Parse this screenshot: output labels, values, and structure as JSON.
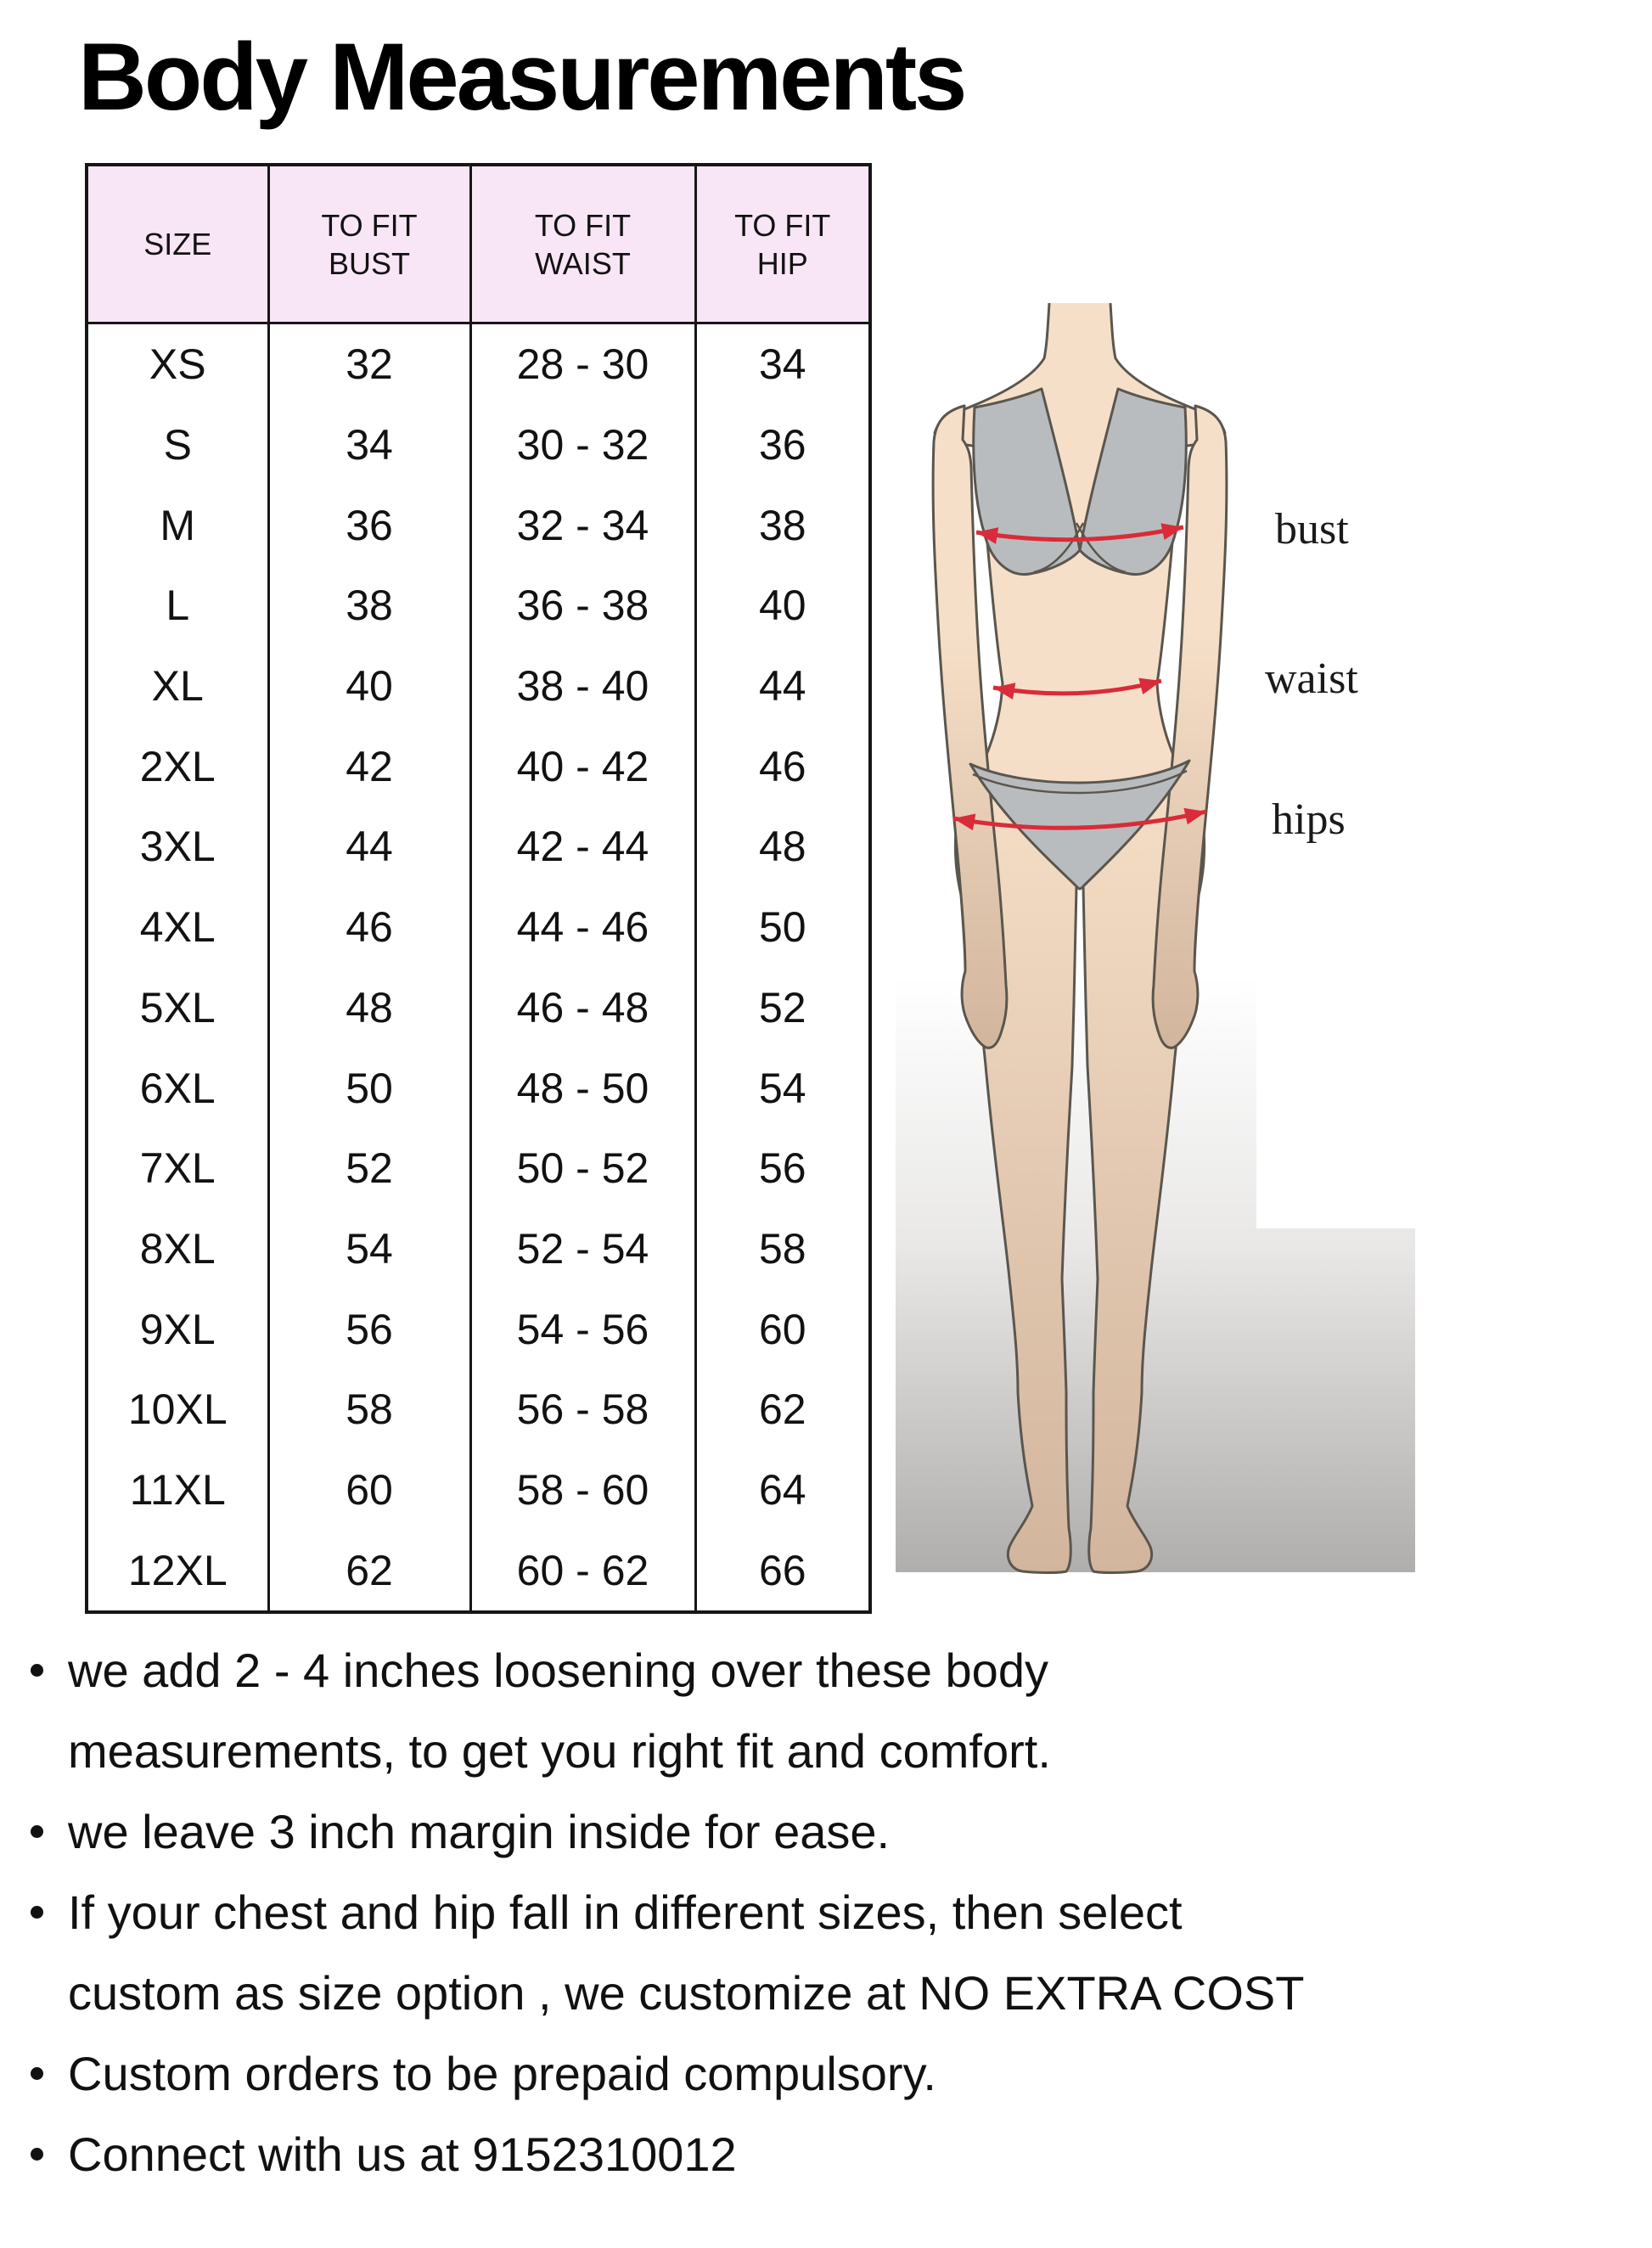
{
  "page": {
    "title": "Body Measurements"
  },
  "table": {
    "headers": [
      "SIZE",
      "TO FIT\nBUST",
      "TO FIT\nWAIST",
      "TO FIT\nHIP"
    ],
    "col_keys": [
      "size",
      "bust",
      "waist",
      "hip"
    ],
    "rows": [
      [
        "XS",
        "32",
        "28 - 30",
        "34"
      ],
      [
        "S",
        "34",
        "30 - 32",
        "36"
      ],
      [
        "M",
        "36",
        "32 - 34",
        "38"
      ],
      [
        "L",
        "38",
        "36 - 38",
        "40"
      ],
      [
        "XL",
        "40",
        "38 - 40",
        "44"
      ],
      [
        "2XL",
        "42",
        "40 - 42",
        "46"
      ],
      [
        "3XL",
        "44",
        "42 - 44",
        "48"
      ],
      [
        "4XL",
        "46",
        "44 - 46",
        "50"
      ],
      [
        "5XL",
        "48",
        "46 - 48",
        "52"
      ],
      [
        "6XL",
        "50",
        "48 - 50",
        "54"
      ],
      [
        "7XL",
        "52",
        "50 - 52",
        "56"
      ],
      [
        "8XL",
        "54",
        "52 - 54",
        "58"
      ],
      [
        "9XL",
        "56",
        "54 - 56",
        "60"
      ],
      [
        "10XL",
        "58",
        "56 - 58",
        "62"
      ],
      [
        "11XL",
        "60",
        "58 - 60",
        "64"
      ],
      [
        "12XL",
        "62",
        "60 - 62",
        "66"
      ]
    ]
  },
  "figure": {
    "labels": {
      "bust": "bust",
      "waist": "waist",
      "hips": "hips"
    }
  },
  "notes": [
    "we add 2 - 4 inches loosening over these body\nmeasurements, to get you right fit and comfort.",
    "we leave 3 inch margin inside for ease.",
    "If your chest and hip fall in different sizes, then select\ncustom as size option , we customize at NO EXTRA COST",
    "Custom orders to be prepaid compulsory.",
    "Connect with us at 9152310012"
  ],
  "colors": {
    "header_pink": "#f8e6f6",
    "border_dark": "#161616",
    "text_black": "#121212",
    "skin_top": "#f6dfc8",
    "skin_bottom": "#d2b59d",
    "bikini_gray": "#b9bcbe",
    "outline": "#5a564e",
    "arrow_red": "#d92b39",
    "bg_top": "#ffffff",
    "bg_mid": "#e9e8e7",
    "bg_bottom": "#b0aeac"
  }
}
